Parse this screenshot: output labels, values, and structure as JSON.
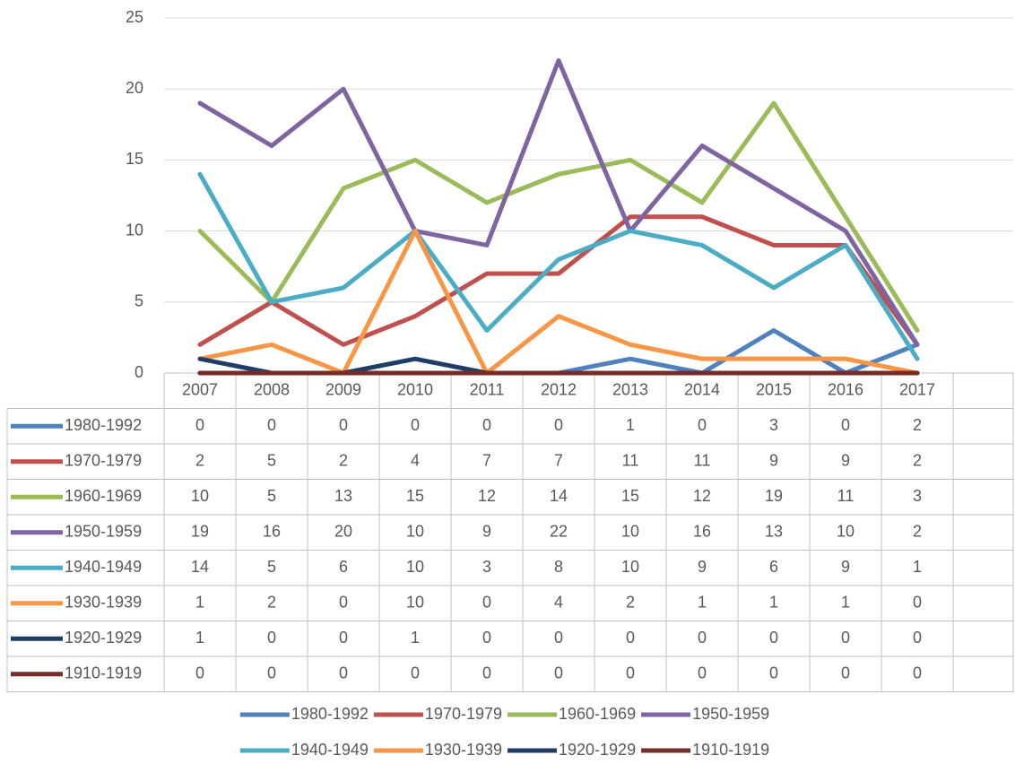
{
  "chart_data": {
    "type": "line",
    "categories": [
      "2007",
      "2008",
      "2009",
      "2010",
      "2011",
      "2012",
      "2013",
      "2014",
      "2015",
      "2016",
      "2017"
    ],
    "series": [
      {
        "name": "1980-1992",
        "color": "#4f81bd",
        "values": [
          0,
          0,
          0,
          0,
          0,
          0,
          1,
          0,
          3,
          0,
          2
        ]
      },
      {
        "name": "1970-1979",
        "color": "#c0504d",
        "values": [
          2,
          5,
          2,
          4,
          7,
          7,
          11,
          11,
          9,
          9,
          2
        ]
      },
      {
        "name": "1960-1969",
        "color": "#9bbb59",
        "values": [
          10,
          5,
          13,
          15,
          12,
          14,
          15,
          12,
          19,
          11,
          3
        ]
      },
      {
        "name": "1950-1959",
        "color": "#8064a2",
        "values": [
          19,
          16,
          20,
          10,
          9,
          22,
          10,
          16,
          13,
          10,
          2
        ]
      },
      {
        "name": "1940-1949",
        "color": "#4bacc6",
        "values": [
          14,
          5,
          6,
          10,
          3,
          8,
          10,
          9,
          6,
          9,
          1
        ]
      },
      {
        "name": "1930-1939",
        "color": "#f79646",
        "values": [
          1,
          2,
          0,
          10,
          0,
          4,
          2,
          1,
          1,
          1,
          0
        ]
      },
      {
        "name": "1920-1929",
        "color": "#1f3d66",
        "values": [
          1,
          0,
          0,
          1,
          0,
          0,
          0,
          0,
          0,
          0,
          0
        ]
      },
      {
        "name": "1910-1919",
        "color": "#772c2a",
        "values": [
          0,
          0,
          0,
          0,
          0,
          0,
          0,
          0,
          0,
          0,
          0
        ]
      }
    ],
    "ylim": [
      0,
      25
    ],
    "yticks": [
      0,
      5,
      10,
      15,
      20,
      25
    ],
    "grid": true,
    "data_table": true,
    "legend": "bottom"
  }
}
